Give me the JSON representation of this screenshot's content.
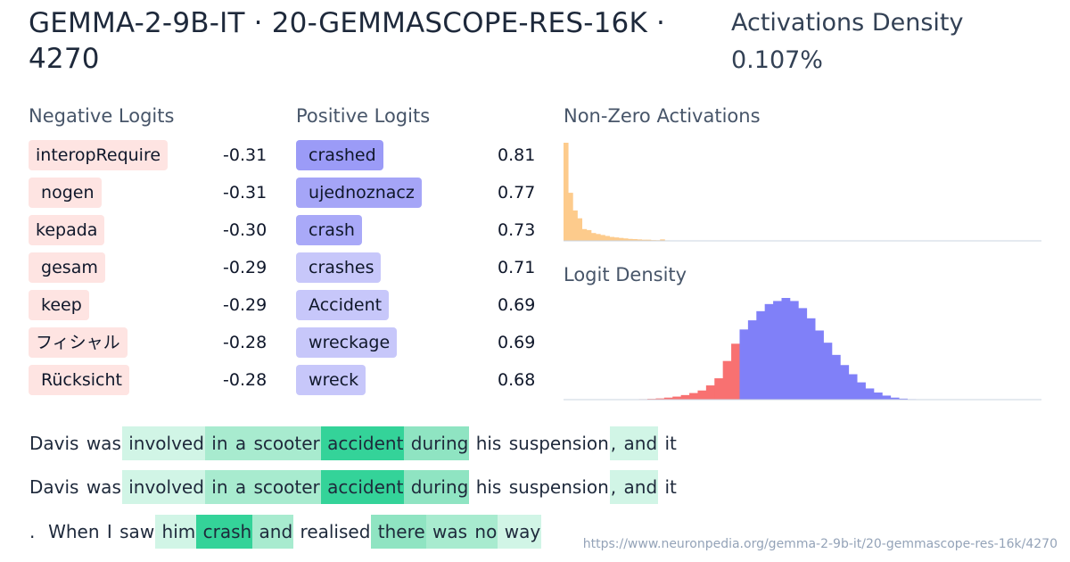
{
  "header": {
    "title": "GEMMA-2-9B-IT · 20-GEMMASCOPE-RES-16K · 4270",
    "density_label": "Activations Density",
    "density_value": "0.107%"
  },
  "negative_logits": {
    "heading": "Negative Logits",
    "items": [
      {
        "token": "interopRequire",
        "value": "-0.31"
      },
      {
        "token": " nogen",
        "value": "-0.31"
      },
      {
        "token": "kepada",
        "value": "-0.30"
      },
      {
        "token": " gesam",
        "value": "-0.29"
      },
      {
        "token": " keep",
        "value": "-0.29"
      },
      {
        "token": "フィシャル",
        "value": "-0.28"
      },
      {
        "token": " Rücksicht",
        "value": "-0.28"
      }
    ]
  },
  "positive_logits": {
    "heading": "Positive Logits",
    "items": [
      {
        "token": " crashed",
        "value": "0.81",
        "color": "#9b9bf7"
      },
      {
        "token": " ujednoznacz",
        "value": "0.77",
        "color": "#a5a5f7"
      },
      {
        "token": " crash",
        "value": "0.73",
        "color": "#a9a9f8"
      },
      {
        "token": " crashes",
        "value": "0.71",
        "color": "#c7c7fa"
      },
      {
        "token": " Accident",
        "value": "0.69",
        "color": "#c7c7fa"
      },
      {
        "token": " wreckage",
        "value": "0.69",
        "color": "#c7c7fa"
      },
      {
        "token": " wreck",
        "value": "0.68",
        "color": "#c7c7fa"
      }
    ]
  },
  "chart_data": [
    {
      "type": "bar",
      "title": "Non-Zero Activations",
      "color": "#fdcb8c",
      "values": [
        100,
        49,
        31,
        23,
        12,
        11,
        8,
        7,
        6,
        5,
        4,
        3.5,
        3,
        2.5,
        2,
        1.8,
        1.5,
        1.2,
        1.2,
        0.8,
        0.7,
        1.5,
        0.5,
        0.4,
        0.3,
        0.2,
        0.1,
        0,
        0,
        0,
        0,
        0,
        0,
        0,
        0,
        0,
        0,
        0,
        0,
        0,
        0,
        0,
        0,
        0,
        0,
        0,
        0,
        0,
        0,
        0,
        0,
        0,
        0,
        0,
        0,
        0,
        0,
        0,
        0,
        0,
        0,
        0,
        0,
        0,
        0,
        0,
        0,
        0,
        0,
        0,
        0,
        0,
        0,
        0,
        0,
        0,
        0,
        0,
        0,
        0,
        0,
        0,
        0,
        0,
        0,
        0,
        0,
        0,
        0,
        0,
        0,
        0,
        0,
        0,
        0,
        0,
        0,
        0,
        0,
        0,
        0,
        0,
        0,
        0
      ]
    },
    {
      "type": "bar",
      "title": "Logit Density",
      "negative_color": "#f87171",
      "positive_color": "#8080f8",
      "negative_values": [
        0,
        0,
        0,
        0,
        0,
        0,
        0,
        0,
        0,
        0.5,
        0.8,
        1.2,
        2,
        3,
        4.5,
        6.5,
        9,
        14,
        21,
        38,
        55
      ],
      "positive_values": [
        69,
        78,
        87,
        94,
        97,
        100,
        97,
        90,
        80,
        68,
        56,
        44,
        34,
        25,
        17,
        11,
        7,
        4,
        2,
        1,
        0.5,
        0.2,
        0,
        0,
        0,
        0,
        0,
        0,
        0,
        0,
        0,
        0,
        0,
        0,
        0,
        0
      ]
    }
  ],
  "examples": [
    [
      {
        "t": "Davis",
        "a": 0
      },
      {
        "t": " was",
        "a": 0
      },
      {
        "t": " involved",
        "a": 1
      },
      {
        "t": " in",
        "a": 2
      },
      {
        "t": " a",
        "a": 2
      },
      {
        "t": " scooter",
        "a": 2
      },
      {
        "t": " accident",
        "a": 4
      },
      {
        "t": " during",
        "a": 3
      },
      {
        "t": " his",
        "a": 0
      },
      {
        "t": " suspension",
        "a": 0
      },
      {
        "t": ",",
        "a": 1
      },
      {
        "t": " and",
        "a": 1
      },
      {
        "t": " it",
        "a": 0
      }
    ],
    [
      {
        "t": "Davis",
        "a": 0
      },
      {
        "t": " was",
        "a": 0
      },
      {
        "t": " involved",
        "a": 1
      },
      {
        "t": " in",
        "a": 2
      },
      {
        "t": " a",
        "a": 2
      },
      {
        "t": " scooter",
        "a": 2
      },
      {
        "t": " accident",
        "a": 4
      },
      {
        "t": " during",
        "a": 3
      },
      {
        "t": " his",
        "a": 0
      },
      {
        "t": " suspension",
        "a": 0
      },
      {
        "t": ",",
        "a": 1
      },
      {
        "t": " and",
        "a": 1
      },
      {
        "t": " it",
        "a": 0
      }
    ],
    [
      {
        "t": ".",
        "a": 0
      },
      {
        "t": "  When",
        "a": 0
      },
      {
        "t": " I",
        "a": 0
      },
      {
        "t": " saw",
        "a": 0
      },
      {
        "t": " him",
        "a": 1
      },
      {
        "t": " crash",
        "a": 4
      },
      {
        "t": " and",
        "a": 2
      },
      {
        "t": " realised",
        "a": 0
      },
      {
        "t": " there",
        "a": 3
      },
      {
        "t": " was",
        "a": 2
      },
      {
        "t": " no",
        "a": 2
      },
      {
        "t": " way",
        "a": 1
      }
    ]
  ],
  "activation_colors": [
    "#ffffff",
    "#d1f5e6",
    "#a8ebcf",
    "#8fe4c2",
    "#34d399"
  ],
  "footer": {
    "url": "https://www.neuronpedia.org/gemma-2-9b-it/20-gemmascope-res-16k/4270"
  }
}
